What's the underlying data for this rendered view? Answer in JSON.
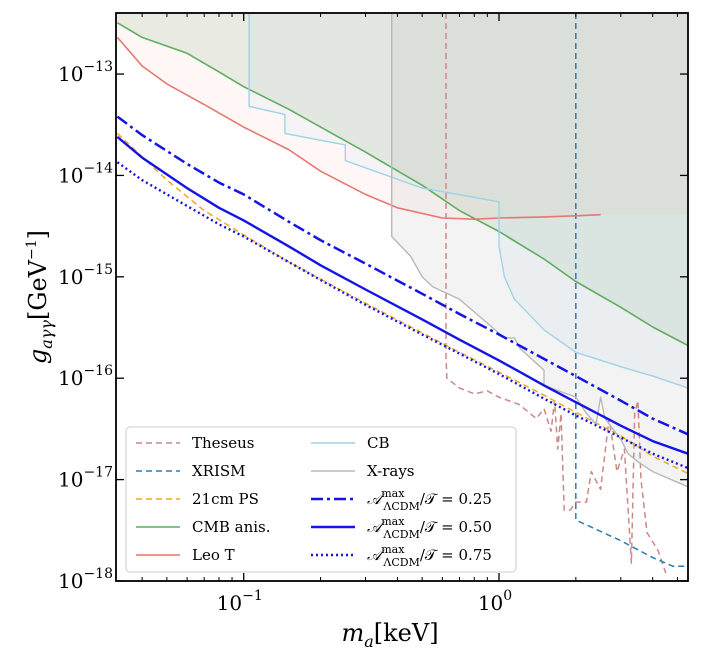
{
  "chart_data": {
    "type": "line",
    "xscale": "log",
    "yscale": "log",
    "xlim": [
      0.0316,
      5.5
    ],
    "ylim": [
      1e-18,
      4e-13
    ],
    "xlabel": "m_a[keV]",
    "ylabel": "g_{aγγ}[GeV^{-1}]",
    "grid": false,
    "legend_position": "lower-left",
    "x_ticks": [
      {
        "value": 0.1,
        "base": "10",
        "exp": "−1"
      },
      {
        "value": 1,
        "base": "10",
        "exp": "0"
      }
    ],
    "y_ticks": [
      {
        "value": 1e-13,
        "base": "10",
        "exp": "−13"
      },
      {
        "value": 1e-14,
        "base": "10",
        "exp": "−14"
      },
      {
        "value": 1e-15,
        "base": "10",
        "exp": "−15"
      },
      {
        "value": 1e-16,
        "base": "10",
        "exp": "−16"
      },
      {
        "value": 1e-17,
        "base": "10",
        "exp": "−17"
      },
      {
        "value": 1e-18,
        "base": "10",
        "exp": "−18"
      }
    ],
    "series": [
      {
        "name": "Theseus",
        "color": "#c98a87",
        "dash": "6,4",
        "width": 1.5,
        "fill": false,
        "points": [
          [
            0.62,
            4e-13
          ],
          [
            0.62,
            1.6e-16
          ],
          [
            0.625,
            1e-16
          ],
          [
            0.7,
            8e-17
          ],
          [
            0.8,
            7e-17
          ],
          [
            0.9,
            7.5e-17
          ],
          [
            1.0,
            6.5e-17
          ],
          [
            1.2,
            5.5e-17
          ],
          [
            1.4,
            4e-17
          ],
          [
            1.5,
            5e-17
          ],
          [
            1.6,
            3e-17
          ],
          [
            1.65,
            6e-17
          ],
          [
            1.7,
            2e-17
          ],
          [
            1.75,
            4.5e-17
          ],
          [
            1.8,
            5e-18
          ],
          [
            1.9,
            5e-18
          ],
          [
            2.0,
            6e-18
          ],
          [
            2.2,
            6e-18
          ],
          [
            2.3,
            1.2e-17
          ],
          [
            2.5,
            8e-18
          ],
          [
            2.7,
            4e-17
          ],
          [
            2.9,
            1.2e-17
          ],
          [
            3.1,
            2e-17
          ],
          [
            3.3,
            1.5e-18
          ],
          [
            3.4,
            4.5e-17
          ],
          [
            3.5,
            6e-17
          ],
          [
            3.6,
            1e-17
          ],
          [
            3.8,
            3e-18
          ],
          [
            4.2,
            2e-18
          ],
          [
            4.5,
            1.2e-18
          ]
        ]
      },
      {
        "name": "XRISM",
        "color": "#2a7ab8",
        "dash": "6,4",
        "width": 1.5,
        "fill": false,
        "points": [
          [
            2.0,
            4e-13
          ],
          [
            2.0,
            4e-18
          ],
          [
            3.0,
            2.5e-18
          ],
          [
            4.0,
            1.7e-18
          ],
          [
            4.8,
            1.4e-18
          ],
          [
            5.5,
            1.4e-18
          ]
        ]
      },
      {
        "name": "21cm PS",
        "color": "#f5a623",
        "dash": "6,4",
        "width": 1.5,
        "fill": false,
        "points": [
          [
            0.032,
            2.6e-14
          ],
          [
            0.05,
            9e-15
          ],
          [
            0.07,
            4.5e-15
          ],
          [
            0.1,
            2.6e-15
          ],
          [
            0.15,
            1.4e-15
          ],
          [
            0.2,
            9.5e-16
          ],
          [
            0.3,
            5.5e-16
          ],
          [
            0.5,
            2.8e-16
          ],
          [
            0.7,
            1.8e-16
          ],
          [
            1.0,
            1.15e-16
          ],
          [
            1.5,
            6.8e-17
          ],
          [
            2.0,
            4.6e-17
          ],
          [
            3.0,
            2.7e-17
          ],
          [
            4.0,
            1.7e-17
          ],
          [
            5.5,
            1.15e-17
          ]
        ]
      },
      {
        "name": "CMB anis.",
        "color": "#5fae5f",
        "dash": "",
        "width": 1.6,
        "fill": true,
        "fill_color": "rgba(120,170,120,0.16)",
        "points": [
          [
            0.032,
            3.2e-13
          ],
          [
            0.04,
            2.3e-13
          ],
          [
            0.06,
            1.6e-13
          ],
          [
            0.08,
            1.05e-13
          ],
          [
            0.1,
            7.5e-14
          ],
          [
            0.15,
            4.5e-14
          ],
          [
            0.2,
            3e-14
          ],
          [
            0.3,
            1.7e-14
          ],
          [
            0.5,
            8e-15
          ],
          [
            0.7,
            4.5e-15
          ],
          [
            1.0,
            2.8e-15
          ],
          [
            1.5,
            1.5e-15
          ],
          [
            2.0,
            9e-16
          ],
          [
            3.0,
            5e-16
          ],
          [
            4.0,
            3.2e-16
          ],
          [
            5.5,
            2.1e-16
          ]
        ]
      },
      {
        "name": "Leo T",
        "color": "#e8776f",
        "dash": "",
        "width": 1.6,
        "fill": true,
        "fill_color": "rgba(240,150,140,0.08)",
        "points": [
          [
            0.032,
            2.3e-13
          ],
          [
            0.04,
            1.2e-13
          ],
          [
            0.05,
            8e-14
          ],
          [
            0.07,
            5e-14
          ],
          [
            0.1,
            3e-14
          ],
          [
            0.15,
            1.8e-14
          ],
          [
            0.2,
            1.1e-14
          ],
          [
            0.3,
            6.5e-15
          ],
          [
            0.4,
            4.8e-15
          ],
          [
            0.6,
            3.8e-15
          ],
          [
            0.8,
            3.7e-15
          ],
          [
            1.0,
            3.8e-15
          ],
          [
            1.5,
            3.9e-15
          ],
          [
            2.0,
            4e-15
          ],
          [
            2.5,
            4.1e-15
          ]
        ]
      },
      {
        "name": "CB",
        "color": "#9fd3e6",
        "dash": "",
        "width": 1.4,
        "fill": true,
        "fill_color": "rgba(180,215,235,0.12)",
        "points": [
          [
            0.105,
            4e-13
          ],
          [
            0.105,
            4.8e-14
          ],
          [
            0.145,
            4e-14
          ],
          [
            0.145,
            2.6e-14
          ],
          [
            0.25,
            2e-14
          ],
          [
            0.25,
            1.4e-14
          ],
          [
            0.5,
            7.5e-15
          ],
          [
            1.0,
            5.5e-15
          ],
          [
            1.0,
            2e-15
          ],
          [
            1.05,
            1e-15
          ],
          [
            1.15,
            6e-16
          ],
          [
            1.5,
            3e-16
          ],
          [
            2.0,
            1.8e-16
          ],
          [
            3.0,
            1.3e-16
          ],
          [
            4.0,
            1.05e-16
          ],
          [
            5.5,
            8e-17
          ]
        ]
      },
      {
        "name": "X-rays",
        "color": "#b8b8b8",
        "dash": "",
        "width": 1.4,
        "fill": true,
        "fill_color": "rgba(180,180,180,0.16)",
        "points": [
          [
            0.38,
            4e-13
          ],
          [
            0.38,
            2.5e-15
          ],
          [
            0.45,
            1.6e-15
          ],
          [
            0.5,
            1e-15
          ],
          [
            0.55,
            8e-16
          ],
          [
            0.7,
            6e-16
          ],
          [
            0.9,
            3.5e-16
          ],
          [
            1.05,
            2.5e-16
          ],
          [
            1.15,
            2.5e-16
          ],
          [
            1.2,
            2e-16
          ],
          [
            1.5,
            1.2e-16
          ],
          [
            1.5,
            8.5e-17
          ],
          [
            2.0,
            6.5e-17
          ],
          [
            2.2,
            4.5e-17
          ],
          [
            2.4,
            3.5e-17
          ],
          [
            2.5,
            6.5e-17
          ],
          [
            2.6,
            4e-17
          ],
          [
            3.0,
            2.5e-17
          ],
          [
            3.2,
            1.8e-17
          ],
          [
            3.5,
            1.5e-17
          ],
          [
            4.0,
            1.2e-17
          ],
          [
            5.5,
            8.5e-18
          ]
        ]
      },
      {
        "name": "A^max/T = 0.25",
        "label_frac": "0.25",
        "color": "#1414e6",
        "dash": "12,4,3,4",
        "width": 2.5,
        "fill": false,
        "points": [
          [
            0.032,
            3.8e-14
          ],
          [
            0.04,
            2.5e-14
          ],
          [
            0.06,
            1.3e-14
          ],
          [
            0.08,
            8.5e-15
          ],
          [
            0.1,
            6.5e-15
          ],
          [
            0.15,
            3.5e-15
          ],
          [
            0.2,
            2.3e-15
          ],
          [
            0.3,
            1.35e-15
          ],
          [
            0.5,
            6.8e-16
          ],
          [
            0.7,
            4.3e-16
          ],
          [
            1.0,
            2.7e-16
          ],
          [
            1.5,
            1.55e-16
          ],
          [
            2.0,
            1.05e-16
          ],
          [
            3.0,
            6e-17
          ],
          [
            4.0,
            4e-17
          ],
          [
            5.5,
            2.8e-17
          ]
        ]
      },
      {
        "name": "A^max/T = 0.50",
        "label_frac": "0.50",
        "color": "#1414e6",
        "dash": "",
        "width": 2.4,
        "fill": false,
        "points": [
          [
            0.032,
            2.4e-14
          ],
          [
            0.04,
            1.5e-14
          ],
          [
            0.06,
            7.5e-15
          ],
          [
            0.08,
            4.8e-15
          ],
          [
            0.1,
            3.6e-15
          ],
          [
            0.15,
            2e-15
          ],
          [
            0.2,
            1.3e-15
          ],
          [
            0.3,
            7.5e-16
          ],
          [
            0.5,
            3.8e-16
          ],
          [
            0.7,
            2.4e-16
          ],
          [
            1.0,
            1.5e-16
          ],
          [
            1.5,
            8.5e-17
          ],
          [
            2.0,
            5.8e-17
          ],
          [
            3.0,
            3.4e-17
          ],
          [
            4.0,
            2.4e-17
          ],
          [
            5.5,
            1.8e-17
          ]
        ]
      },
      {
        "name": "A^max/T = 0.75",
        "label_frac": "0.75",
        "color": "#1414e6",
        "dash": "2,3",
        "width": 2.4,
        "fill": false,
        "points": [
          [
            0.032,
            1.35e-14
          ],
          [
            0.04,
            9e-15
          ],
          [
            0.06,
            5e-15
          ],
          [
            0.08,
            3.3e-15
          ],
          [
            0.1,
            2.5e-15
          ],
          [
            0.15,
            1.4e-15
          ],
          [
            0.2,
            9.3e-16
          ],
          [
            0.3,
            5.3e-16
          ],
          [
            0.5,
            2.7e-16
          ],
          [
            0.7,
            1.75e-16
          ],
          [
            1.0,
            1.1e-16
          ],
          [
            1.5,
            6.3e-17
          ],
          [
            2.0,
            4.3e-17
          ],
          [
            3.0,
            2.6e-17
          ],
          [
            4.0,
            1.8e-17
          ],
          [
            5.5,
            1.3e-17
          ]
        ]
      }
    ],
    "legend": [
      {
        "label": "Theseus",
        "series": 0,
        "col": 0,
        "row": 0
      },
      {
        "label": "XRISM",
        "series": 1,
        "col": 0,
        "row": 1
      },
      {
        "label": "21cm PS",
        "series": 2,
        "col": 0,
        "row": 2
      },
      {
        "label": "CMB anis.",
        "series": 3,
        "col": 0,
        "row": 3
      },
      {
        "label": "Leo T",
        "series": 4,
        "col": 0,
        "row": 4
      },
      {
        "label": "CB",
        "series": 5,
        "col": 1,
        "row": 0
      },
      {
        "label": "X-rays",
        "series": 6,
        "col": 1,
        "row": 1
      },
      {
        "label": "A^max_ΛCDM/T = 0.25",
        "series": 7,
        "col": 1,
        "row": 2
      },
      {
        "label": "A^max_ΛCDM/T = 0.50",
        "series": 8,
        "col": 1,
        "row": 3
      },
      {
        "label": "A^max_ΛCDM/T = 0.75",
        "series": 9,
        "col": 1,
        "row": 4
      }
    ],
    "legend_math": {
      "sym_A": "𝒜",
      "sup": "max",
      "sub": "ΛCDM",
      "over": "/𝒯 = "
    }
  }
}
